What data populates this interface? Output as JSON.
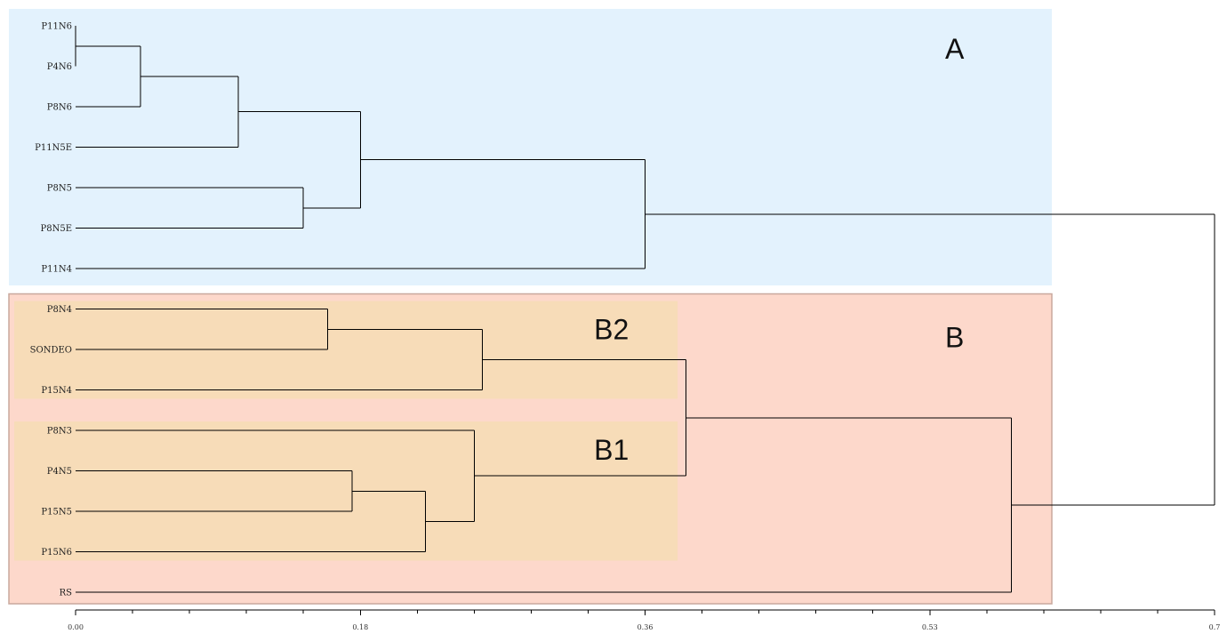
{
  "chart_data": {
    "type": "dendrogram",
    "orientation": "horizontal",
    "leaves": [
      "P11N6",
      "P4N6",
      "P8N6",
      "P11N5E",
      "P8N5",
      "P8N5E",
      "P11N4",
      "P8N4",
      "SONDEO",
      "P15N4",
      "P8N3",
      "P4N5",
      "P15N5",
      "P15N6",
      "RS"
    ],
    "merges": [
      {
        "id": "m1",
        "children": [
          "P11N6",
          "P4N6"
        ],
        "height": 0.0
      },
      {
        "id": "m2",
        "children": [
          "m1",
          "P8N6"
        ],
        "height": 0.04
      },
      {
        "id": "m3",
        "children": [
          "m2",
          "P11N5E"
        ],
        "height": 0.1
      },
      {
        "id": "m4",
        "children": [
          "P8N5",
          "P8N5E"
        ],
        "height": 0.14
      },
      {
        "id": "m5",
        "children": [
          "m3",
          "m4"
        ],
        "height": 0.175
      },
      {
        "id": "m6",
        "children": [
          "m5",
          "P11N4"
        ],
        "height": 0.35
      },
      {
        "id": "m7",
        "children": [
          "P8N4",
          "SONDEO"
        ],
        "height": 0.155
      },
      {
        "id": "m8",
        "children": [
          "m7",
          "P15N4"
        ],
        "height": 0.25
      },
      {
        "id": "m9",
        "children": [
          "P4N5",
          "P15N5"
        ],
        "height": 0.17
      },
      {
        "id": "m10",
        "children": [
          "m9",
          "P15N6"
        ],
        "height": 0.215
      },
      {
        "id": "m11",
        "children": [
          "P8N3",
          "m10"
        ],
        "height": 0.245
      },
      {
        "id": "m12",
        "children": [
          "m8",
          "m11"
        ],
        "height": 0.375
      },
      {
        "id": "m13",
        "children": [
          "m12",
          "RS"
        ],
        "height": 0.575
      },
      {
        "id": "m14",
        "children": [
          "m6",
          "m13"
        ],
        "height": 0.7
      }
    ],
    "x_ticks": [
      "0.00",
      "0.18",
      "0.36",
      "0.53",
      "0.7"
    ],
    "x_tick_values": [
      0.0,
      0.175,
      0.35,
      0.525,
      0.7
    ],
    "xlim": [
      0,
      0.7
    ],
    "minor_ticks_per_major": 5,
    "groups": [
      {
        "label": "A",
        "leaves": [
          "P11N6",
          "P4N6",
          "P8N6",
          "P11N5E",
          "P8N5",
          "P8N5E",
          "P11N4"
        ],
        "color": "#e3f2fd",
        "extent": 0.6
      },
      {
        "label": "B",
        "leaves": [
          "P8N4",
          "SONDEO",
          "P15N4",
          "P8N3",
          "P4N5",
          "P15N5",
          "P15N6",
          "RS"
        ],
        "color": "#fdd8cb",
        "border": "#c9a89d",
        "extent": 0.6
      },
      {
        "label": "B2",
        "leaves": [
          "P8N4",
          "SONDEO",
          "P15N4"
        ],
        "color": "#f7dcb8",
        "extent": 0.37
      },
      {
        "label": "B1",
        "leaves": [
          "P8N3",
          "P4N5",
          "P15N5",
          "P15N6"
        ],
        "color": "#f7dcb8",
        "extent": 0.37
      }
    ]
  }
}
